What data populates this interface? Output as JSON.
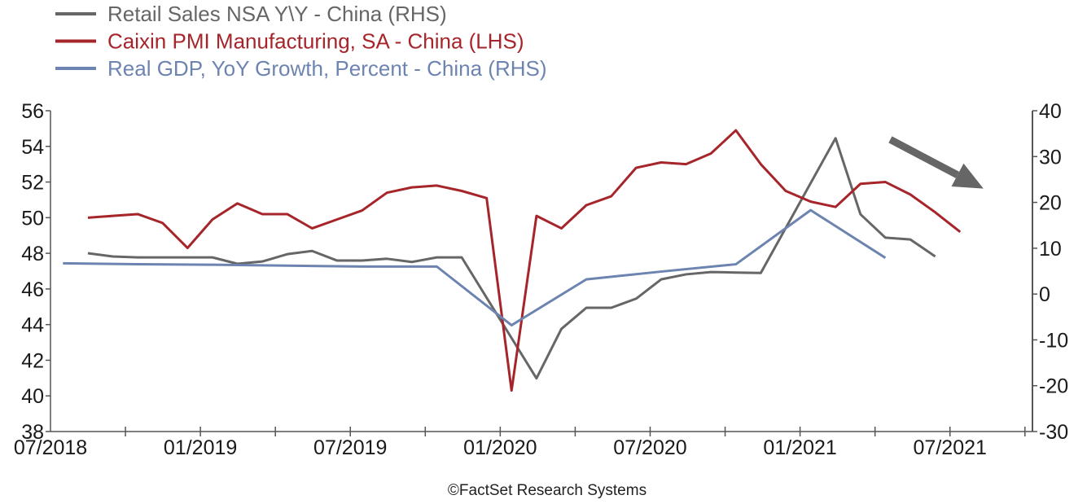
{
  "chart_data": {
    "type": "line",
    "title": "",
    "source": "©FactSet Research Systems",
    "legend_position": "top-left",
    "grid": false,
    "x_axis": {
      "type": "time",
      "range": [
        "2018-07",
        "2021-10"
      ],
      "tick_interval_months": 3,
      "tick_labels": [
        "07/2018",
        "01/2019",
        "07/2019",
        "01/2020",
        "07/2020",
        "01/2021",
        "07/2021"
      ]
    },
    "y_left": {
      "label": "LHS",
      "range": [
        38,
        56
      ],
      "ticks": [
        56,
        54,
        52,
        50,
        48,
        46,
        44,
        42,
        40,
        38
      ]
    },
    "y_right": {
      "label": "RHS",
      "range": [
        -30,
        40
      ],
      "ticks": [
        40,
        30,
        20,
        10,
        0,
        -10,
        -20,
        -30
      ]
    },
    "series": [
      {
        "name": "Retail Sales NSA Y\\Y - China (RHS)",
        "axis": "right",
        "color": "#666666",
        "points": [
          [
            "2018-09",
            8.9
          ],
          [
            "2018-10",
            8.2
          ],
          [
            "2018-11",
            8.0
          ],
          [
            "2018-12",
            8.0
          ],
          [
            "2019-01",
            8.0
          ],
          [
            "2019-02",
            8.0
          ],
          [
            "2019-03",
            6.6
          ],
          [
            "2019-04",
            7.1
          ],
          [
            "2019-05",
            8.7
          ],
          [
            "2019-06",
            9.4
          ],
          [
            "2019-07",
            7.3
          ],
          [
            "2019-08",
            7.3
          ],
          [
            "2019-09",
            7.7
          ],
          [
            "2019-10",
            7.0
          ],
          [
            "2019-11",
            8.0
          ],
          [
            "2019-12",
            8.0
          ],
          [
            "2020-03",
            -18.4
          ],
          [
            "2020-04",
            -7.6
          ],
          [
            "2020-05",
            -3.0
          ],
          [
            "2020-06",
            -3.0
          ],
          [
            "2020-07",
            -1.0
          ],
          [
            "2020-08",
            3.2
          ],
          [
            "2020-09",
            4.3
          ],
          [
            "2020-10",
            4.8
          ],
          [
            "2020-11",
            4.7
          ],
          [
            "2020-12",
            4.6
          ],
          [
            "2021-03",
            34.0
          ],
          [
            "2021-04",
            17.4
          ],
          [
            "2021-05",
            12.3
          ],
          [
            "2021-06",
            11.9
          ],
          [
            "2021-07",
            8.2
          ]
        ]
      },
      {
        "name": "Caixin PMI Manufacturing, SA - China (LHS)",
        "axis": "left",
        "color": "#A6252A",
        "points": [
          [
            "2018-09",
            50.0
          ],
          [
            "2018-10",
            50.1
          ],
          [
            "2018-11",
            50.2
          ],
          [
            "2018-12",
            49.7
          ],
          [
            "2019-01",
            48.3
          ],
          [
            "2019-02",
            49.9
          ],
          [
            "2019-03",
            50.8
          ],
          [
            "2019-04",
            50.2
          ],
          [
            "2019-05",
            50.2
          ],
          [
            "2019-06",
            49.4
          ],
          [
            "2019-07",
            49.9
          ],
          [
            "2019-08",
            50.4
          ],
          [
            "2019-09",
            51.4
          ],
          [
            "2019-10",
            51.7
          ],
          [
            "2019-11",
            51.8
          ],
          [
            "2019-12",
            51.5
          ],
          [
            "2020-01",
            51.1
          ],
          [
            "2020-02",
            40.3
          ],
          [
            "2020-03",
            50.1
          ],
          [
            "2020-04",
            49.4
          ],
          [
            "2020-05",
            50.7
          ],
          [
            "2020-06",
            51.2
          ],
          [
            "2020-07",
            52.8
          ],
          [
            "2020-08",
            53.1
          ],
          [
            "2020-09",
            53.0
          ],
          [
            "2020-10",
            53.6
          ],
          [
            "2020-11",
            54.9
          ],
          [
            "2020-12",
            53.0
          ],
          [
            "2021-01",
            51.5
          ],
          [
            "2021-02",
            50.9
          ],
          [
            "2021-03",
            50.6
          ],
          [
            "2021-04",
            51.9
          ],
          [
            "2021-05",
            52.0
          ],
          [
            "2021-06",
            51.3
          ],
          [
            "2021-07",
            50.3
          ],
          [
            "2021-08",
            49.2
          ]
        ]
      },
      {
        "name": "Real GDP, YoY Growth, Percent - China (RHS)",
        "axis": "right",
        "color": "#6D84B0",
        "points": [
          [
            "2018-08",
            6.7
          ],
          [
            "2018-11",
            6.5
          ],
          [
            "2019-02",
            6.4
          ],
          [
            "2019-05",
            6.2
          ],
          [
            "2019-08",
            6.0
          ],
          [
            "2019-11",
            6.0
          ],
          [
            "2020-02",
            -6.8
          ],
          [
            "2020-05",
            3.2
          ],
          [
            "2020-08",
            4.9
          ],
          [
            "2020-11",
            6.5
          ],
          [
            "2021-02",
            18.3
          ],
          [
            "2021-05",
            7.9
          ]
        ]
      }
    ],
    "annotations": [
      {
        "type": "arrow",
        "direction": "down-right",
        "color": "#666666",
        "from": [
          "2021-05",
          33
        ],
        "to": [
          "2021-09",
          23
        ],
        "axis": "right"
      }
    ]
  }
}
